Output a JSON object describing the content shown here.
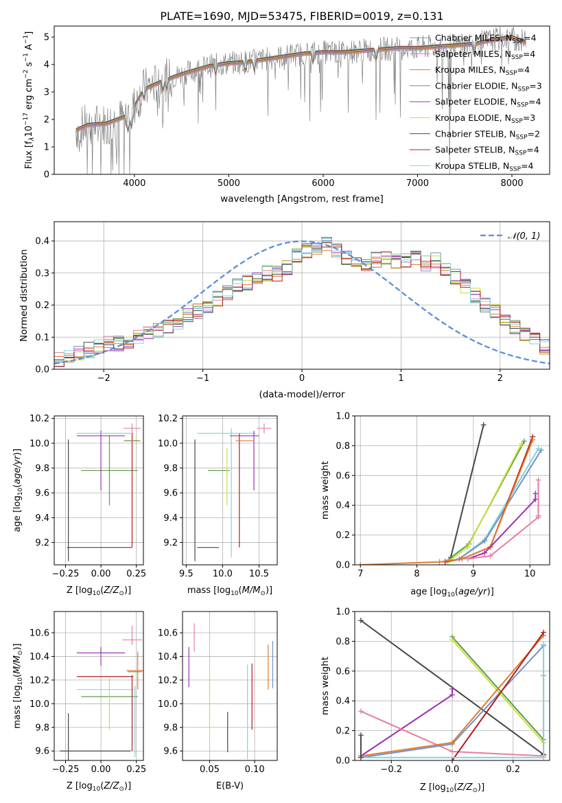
{
  "figure_title": "PLATE=1690, MJD=53475, FIBERID=0019, z=0.131",
  "colors": {
    "Chabrier MILES": "#6f93c8",
    "Salpeter MILES": "#e87da0",
    "Kroupa MILES": "#e07a2a",
    "Chabrier ELODIE": "#5a9a4a",
    "Salpeter ELODIE": "#9b30b5",
    "Kroupa ELODIE": "#c8e03a",
    "Chabrier STELIB": "#444444",
    "Salpeter STELIB": "#b51b1b",
    "Kroupa STELIB": "#7fd4dc",
    "data": "#808080",
    "gauss": "#5b8fd6"
  },
  "chart_data": [
    {
      "id": "spectrum",
      "type": "line",
      "xlabel": "wavelength [Angstrom, rest frame]",
      "ylabel": "Flux [f_λ 10^−17 erg cm^−2 s^−1 A^−1]",
      "xlim": [
        3150,
        8400
      ],
      "ylim": [
        0,
        5.4
      ],
      "xticks": [
        4000,
        5000,
        6000,
        7000,
        8000
      ],
      "yticks": [
        0,
        1,
        2,
        3,
        4,
        5
      ],
      "legend_position": "upper-right",
      "legend": [
        {
          "model": "Chabrier MILES",
          "nssp": "4"
        },
        {
          "model": "Salpeter MILES",
          "nssp": "4"
        },
        {
          "model": "Kroupa MILES",
          "nssp": "4"
        },
        {
          "model": "Chabrier ELODIE",
          "nssp": "3"
        },
        {
          "model": "Salpeter ELODIE",
          "nssp": "4"
        },
        {
          "model": "Kroupa ELODIE",
          "nssp": "3"
        },
        {
          "model": "Chabrier STELIB",
          "nssp": "2"
        },
        {
          "model": "Salpeter STELIB",
          "nssp": "4"
        },
        {
          "model": "Kroupa STELIB",
          "nssp": "4"
        }
      ],
      "model_continuum": {
        "x": [
          3380,
          3500,
          3700,
          3900,
          4000,
          4100,
          4300,
          4500,
          4800,
          5000,
          5200,
          5400,
          5600,
          5800,
          6000,
          6200,
          6400,
          6600,
          6800,
          7000,
          7200,
          7400,
          7600,
          7800,
          8000,
          8150
        ],
        "y": [
          1.6,
          1.8,
          1.85,
          2.1,
          2.5,
          3.1,
          3.4,
          3.65,
          3.95,
          4.05,
          4.1,
          4.2,
          4.3,
          4.4,
          4.45,
          4.45,
          4.5,
          4.55,
          4.6,
          4.6,
          4.65,
          4.7,
          4.75,
          4.9,
          5.0,
          4.8
        ]
      },
      "data_wavelength_range": [
        3380,
        8150
      ]
    },
    {
      "id": "residuals",
      "type": "line",
      "xlabel": "(data-model)/error",
      "ylabel": "Normed distribution",
      "xlim": [
        -2.5,
        2.5
      ],
      "ylim": [
        0,
        0.46
      ],
      "xticks": [
        -2,
        -1,
        0,
        1,
        2
      ],
      "yticks": [
        0.0,
        0.1,
        0.2,
        0.3,
        0.4
      ],
      "grid": true,
      "legend": [
        "𝒩(0, 1)"
      ],
      "legend_position": "upper-right",
      "base_histogram": {
        "bin_width": 0.1,
        "x_start": -2.5,
        "values": [
          0.03,
          0.04,
          0.05,
          0.06,
          0.07,
          0.08,
          0.08,
          0.09,
          0.1,
          0.11,
          0.12,
          0.13,
          0.15,
          0.17,
          0.18,
          0.2,
          0.22,
          0.24,
          0.26,
          0.27,
          0.28,
          0.3,
          0.3,
          0.32,
          0.35,
          0.37,
          0.38,
          0.39,
          0.37,
          0.35,
          0.34,
          0.33,
          0.34,
          0.35,
          0.34,
          0.34,
          0.35,
          0.33,
          0.34,
          0.31,
          0.29,
          0.26,
          0.23,
          0.2,
          0.18,
          0.15,
          0.13,
          0.11,
          0.09,
          0.07,
          0.06,
          0.05,
          0.04
        ]
      }
    },
    {
      "id": "age-vs-Z",
      "type": "scatter",
      "xlabel": "Z [log10(Z/Z⊙)]",
      "ylabel": "age [log10(age/yr)]",
      "xlim": [
        -0.33,
        0.3
      ],
      "ylim": [
        9.02,
        10.22
      ],
      "xticks": [
        -0.25,
        0.0,
        0.25
      ],
      "yticks": [
        9.2,
        9.4,
        9.6,
        9.8,
        10.0,
        10.2
      ],
      "grid": true,
      "points": [
        {
          "model": "Chabrier STELIB",
          "x": -0.01,
          "xerr": 0.23,
          "y": 9.16,
          "yerr": 0.0
        },
        {
          "model": "Chabrier STELIB",
          "x": 0.19,
          "xerr": 0.0,
          "y": 9.16,
          "yerr": 0.0
        },
        {
          "model": "Chabrier STELIB",
          "x": -0.23,
          "xerr": 0.0,
          "y": 9.54,
          "yerr": 0.49
        },
        {
          "model": "Chabrier ELODIE",
          "x": 0.06,
          "xerr": 0.2,
          "y": 9.78,
          "yerr": 0.28
        },
        {
          "model": "Salpeter ELODIE",
          "x": 0.0,
          "xerr": 0.0,
          "y": 9.86,
          "yerr": 0.24
        },
        {
          "model": "Salpeter ELODIE",
          "x": 0.0,
          "xerr": 0.17,
          "y": 10.06,
          "yerr": 0.0
        },
        {
          "model": "Salpeter STELIB",
          "x": 0.22,
          "xerr": 0.0,
          "y": 9.62,
          "yerr": 0.46
        },
        {
          "model": "Kroupa STELIB",
          "x": 0.03,
          "xerr": 0.2,
          "y": 10.08,
          "yerr": 0.0
        },
        {
          "model": "Kroupa MILES",
          "x": 0.22,
          "xerr": 0.06,
          "y": 10.02,
          "yerr": 0.0
        },
        {
          "model": "Chabrier ELODIE",
          "x": 0.22,
          "xerr": 0.05,
          "y": 10.02,
          "yerr": 0.0
        },
        {
          "model": "Salpeter MILES",
          "x": 0.22,
          "xerr": 0.06,
          "y": 10.12,
          "yerr": 0.04
        }
      ]
    },
    {
      "id": "age-vs-mass",
      "type": "scatter",
      "xlabel": "mass [log10(M/M⊙)]",
      "xlim": [
        9.45,
        10.75
      ],
      "ylim": [
        9.02,
        10.22
      ],
      "xticks": [
        9.5,
        10.0,
        10.5
      ],
      "yticks": [
        9.2,
        9.4,
        9.6,
        9.8,
        10.0,
        10.2
      ],
      "grid": true,
      "points": [
        {
          "model": "Chabrier STELIB",
          "x": 9.62,
          "xerr": 0.0,
          "y": 9.54,
          "yerr": 0.49
        },
        {
          "model": "Chabrier STELIB",
          "x": 9.8,
          "xerr": 0.15,
          "y": 9.16,
          "yerr": 0.0
        },
        {
          "model": "Chabrier ELODIE",
          "x": 9.95,
          "xerr": 0.15,
          "y": 9.78,
          "yerr": 0.0
        },
        {
          "model": "Kroupa ELODIE",
          "x": 10.06,
          "xerr": 0.0,
          "y": 9.73,
          "yerr": 0.23
        },
        {
          "model": "Kroupa STELIB",
          "x": 10.12,
          "xerr": 0.0,
          "y": 9.6,
          "yerr": 0.52
        },
        {
          "model": "Salpeter STELIB",
          "x": 10.23,
          "xerr": 0.0,
          "y": 9.62,
          "yerr": 0.46
        },
        {
          "model": "Kroupa STELIB",
          "x": 10.05,
          "xerr": 0.4,
          "y": 10.08,
          "yerr": 0.0
        },
        {
          "model": "Salpeter ELODIE",
          "x": 10.43,
          "xerr": 0.0,
          "y": 9.86,
          "yerr": 0.24
        },
        {
          "model": "Salpeter ELODIE",
          "x": 10.3,
          "xerr": 0.2,
          "y": 10.06,
          "yerr": 0.0
        },
        {
          "model": "Kroupa MILES",
          "x": 10.3,
          "xerr": 0.12,
          "y": 10.02,
          "yerr": 0.0
        },
        {
          "model": "Salpeter MILES",
          "x": 10.57,
          "xerr": 0.1,
          "y": 10.12,
          "yerr": 0.04
        }
      ]
    },
    {
      "id": "mass-weight-vs-age",
      "type": "line",
      "xlabel": "age [log10(age/yr)]",
      "ylabel": "mass weight",
      "xlim": [
        6.9,
        10.35
      ],
      "ylim": [
        0,
        1.0
      ],
      "xticks": [
        7,
        8,
        9,
        10
      ],
      "yticks": [
        0.0,
        0.2,
        0.4,
        0.6,
        0.8,
        1.0
      ],
      "grid": true,
      "series": [
        {
          "model": "Chabrier STELIB",
          "x": [
            8.6,
            9.18
          ],
          "y": [
            0.05,
            0.94
          ]
        },
        {
          "model": "Chabrier ELODIE",
          "x": [
            8.5,
            8.92,
            9.9
          ],
          "y": [
            0.02,
            0.14,
            0.83
          ]
        },
        {
          "model": "Kroupa ELODIE",
          "x": [
            8.55,
            8.9,
            9.85
          ],
          "y": [
            0.02,
            0.12,
            0.81
          ]
        },
        {
          "model": "Kroupa STELIB",
          "x": [
            8.5,
            8.75,
            9.2,
            10.15
          ],
          "y": [
            0.02,
            0.04,
            0.17,
            0.78
          ]
        },
        {
          "model": "Chabrier MILES",
          "x": [
            8.5,
            8.75,
            9.2,
            10.2
          ],
          "y": [
            0.02,
            0.04,
            0.16,
            0.77
          ]
        },
        {
          "model": "Salpeter STELIB",
          "x": [
            8.5,
            8.8,
            9.3,
            10.05
          ],
          "y": [
            0.02,
            0.04,
            0.12,
            0.86
          ]
        },
        {
          "model": "Kroupa MILES",
          "x": [
            7.0,
            8.4,
            8.8,
            9.3,
            10.05
          ],
          "y": [
            0.0,
            0.02,
            0.04,
            0.12,
            0.84
          ]
        },
        {
          "model": "Salpeter ELODIE",
          "x": [
            8.9,
            9.2,
            10.1,
            10.1
          ],
          "y": [
            0.04,
            0.08,
            0.44,
            0.48
          ]
        },
        {
          "model": "Salpeter MILES",
          "x": [
            8.9,
            9.3,
            10.15,
            10.15,
            10.15
          ],
          "y": [
            0.04,
            0.06,
            0.32,
            0.57,
            0.33
          ]
        }
      ]
    },
    {
      "id": "mass-vs-Z",
      "type": "scatter",
      "xlabel": "Z [log10(Z/Z⊙)]",
      "ylabel": "mass [log10(M/M⊙)]",
      "xlim": [
        -0.33,
        0.3
      ],
      "ylim": [
        9.52,
        10.78
      ],
      "xticks": [
        -0.25,
        0.0,
        0.25
      ],
      "yticks": [
        9.6,
        9.8,
        10.0,
        10.2,
        10.4,
        10.6
      ],
      "grid": true,
      "points": [
        {
          "model": "Chabrier STELIB",
          "x": -0.04,
          "xerr": 0.25,
          "y": 9.6,
          "yerr": 0.0
        },
        {
          "model": "Chabrier STELIB",
          "x": -0.23,
          "xerr": 0.0,
          "y": 9.72,
          "yerr": 0.2
        },
        {
          "model": "Chabrier ELODIE",
          "x": 0.06,
          "xerr": 0.2,
          "y": 10.06,
          "yerr": 0.0
        },
        {
          "model": "Kroupa ELODIE",
          "x": 0.06,
          "xerr": 0.0,
          "y": 10.0,
          "yerr": 0.22
        },
        {
          "model": "Kroupa STELIB",
          "x": 0.03,
          "xerr": 0.2,
          "y": 10.12,
          "yerr": 0.0
        },
        {
          "model": "Kroupa STELIB",
          "x": 0.24,
          "xerr": 0.0,
          "y": 9.85,
          "yerr": 0.3
        },
        {
          "model": "Salpeter STELIB",
          "x": 0.03,
          "xerr": 0.2,
          "y": 10.23,
          "yerr": 0.0
        },
        {
          "model": "Salpeter STELIB",
          "x": 0.22,
          "xerr": 0.0,
          "y": 9.92,
          "yerr": 0.32
        },
        {
          "model": "Salpeter ELODIE",
          "x": 0.0,
          "xerr": 0.17,
          "y": 10.43,
          "yerr": 0.0
        },
        {
          "model": "Salpeter ELODIE",
          "x": 0.0,
          "xerr": 0.0,
          "y": 10.4,
          "yerr": 0.08
        },
        {
          "model": "Kroupa MILES",
          "x": 0.24,
          "xerr": 0.06,
          "y": 10.28,
          "yerr": 0.0
        },
        {
          "model": "Kroupa MILES",
          "x": 0.26,
          "xerr": 0.0,
          "y": 10.28,
          "yerr": 0.16
        },
        {
          "model": "Chabrier ELODIE",
          "x": 0.24,
          "xerr": 0.05,
          "y": 10.27,
          "yerr": 0.0
        },
        {
          "model": "Salpeter MILES",
          "x": 0.22,
          "xerr": 0.07,
          "y": 10.54,
          "yerr": 0.0
        },
        {
          "model": "Salpeter MILES",
          "x": 0.22,
          "xerr": 0.0,
          "y": 10.58,
          "yerr": 0.08
        }
      ]
    },
    {
      "id": "mass-vs-EBV",
      "type": "scatter",
      "xlabel": "E(B-V)",
      "xlim": [
        0.02,
        0.125
      ],
      "ylim": [
        9.52,
        10.78
      ],
      "xticks": [
        0.05,
        0.1
      ],
      "yticks": [
        9.6,
        9.8,
        10.0,
        10.2,
        10.4,
        10.6
      ],
      "grid": true,
      "points": [
        {
          "model": "Salpeter ELODIE",
          "x": 0.027,
          "xerr": 0.0,
          "y": 10.31,
          "yerr": 0.17
        },
        {
          "model": "Salpeter MILES",
          "x": 0.033,
          "xerr": 0.0,
          "y": 10.56,
          "yerr": 0.12
        },
        {
          "model": "Kroupa ELODIE",
          "x": 0.05,
          "xerr": 0.0,
          "y": 10.0,
          "yerr": 0.22
        },
        {
          "model": "Chabrier STELIB",
          "x": 0.07,
          "xerr": 0.0,
          "y": 9.76,
          "yerr": 0.17
        },
        {
          "model": "Kroupa STELIB",
          "x": 0.092,
          "xerr": 0.0,
          "y": 9.93,
          "yerr": 0.4
        },
        {
          "model": "Salpeter STELIB",
          "x": 0.097,
          "xerr": 0.0,
          "y": 10.06,
          "yerr": 0.28
        },
        {
          "model": "Kroupa MILES",
          "x": 0.115,
          "xerr": 0.0,
          "y": 10.31,
          "yerr": 0.19
        },
        {
          "model": "Chabrier MILES",
          "x": 0.12,
          "xerr": 0.0,
          "y": 10.33,
          "yerr": 0.2
        }
      ]
    },
    {
      "id": "mass-weight-vs-Z",
      "type": "line",
      "xlabel": "Z [log10(Z/Z⊙)]",
      "ylabel": "mass weight",
      "xlim": [
        -0.32,
        0.32
      ],
      "ylim": [
        0,
        1.0
      ],
      "xticks": [
        -0.2,
        0.0,
        0.2
      ],
      "yticks": [
        0.0,
        0.2,
        0.4,
        0.6,
        0.8,
        1.0
      ],
      "grid": true,
      "series": [
        {
          "model": "Chabrier STELIB",
          "x": [
            -0.3,
            0.3
          ],
          "y": [
            0.94,
            0.04
          ]
        },
        {
          "model": "Chabrier ELODIE",
          "x": [
            0.0,
            0.3
          ],
          "y": [
            0.83,
            0.14
          ]
        },
        {
          "model": "Kroupa ELODIE",
          "x": [
            0.0,
            0.3
          ],
          "y": [
            0.81,
            0.12
          ]
        },
        {
          "model": "Salpeter ELODIE",
          "x": [
            -0.3,
            0.0,
            0.0
          ],
          "y": [
            0.03,
            0.44,
            0.48
          ]
        },
        {
          "model": "Salpeter MILES",
          "x": [
            -0.3,
            0.0,
            0.3,
            0.3
          ],
          "y": [
            0.33,
            0.06,
            0.03,
            0.57
          ]
        },
        {
          "model": "Chabrier MILES",
          "x": [
            -0.3,
            0.0,
            0.3
          ],
          "y": [
            0.02,
            0.11,
            0.77
          ]
        },
        {
          "model": "Kroupa MILES",
          "x": [
            -0.3,
            0.0,
            0.3
          ],
          "y": [
            0.03,
            0.12,
            0.84
          ]
        },
        {
          "model": "Salpeter STELIB",
          "x": [
            0.0,
            0.3
          ],
          "y": [
            0.0,
            0.86
          ]
        },
        {
          "model": "Kroupa STELIB",
          "x": [
            -0.3,
            0.3,
            0.3
          ],
          "y": [
            0.02,
            0.02,
            0.78
          ]
        },
        {
          "model": "Chabrier STELIB",
          "x": [
            -0.3,
            -0.3
          ],
          "y": [
            0.02,
            0.17
          ]
        }
      ]
    }
  ]
}
